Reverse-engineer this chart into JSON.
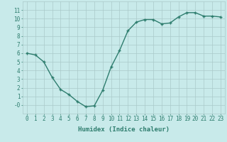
{
  "x": [
    0,
    1,
    2,
    3,
    4,
    5,
    6,
    7,
    8,
    9,
    10,
    11,
    12,
    13,
    14,
    15,
    16,
    17,
    18,
    19,
    20,
    21,
    22,
    23
  ],
  "y": [
    6.0,
    5.8,
    5.0,
    3.2,
    1.8,
    1.2,
    0.4,
    -0.2,
    -0.1,
    1.7,
    4.4,
    6.3,
    8.6,
    9.6,
    9.9,
    9.9,
    9.4,
    9.5,
    10.2,
    10.7,
    10.7,
    10.3,
    10.3,
    10.2
  ],
  "line_color": "#2e7d6e",
  "marker": "+",
  "marker_size": 3.0,
  "bg_color": "#c8eaea",
  "grid_color": "#aacaca",
  "xlabel": "Humidex (Indice chaleur)",
  "xlim": [
    -0.5,
    23.5
  ],
  "ylim": [
    -1,
    12
  ],
  "yticks": [
    0,
    1,
    2,
    3,
    4,
    5,
    6,
    7,
    8,
    9,
    10,
    11
  ],
  "ytick_labels": [
    "-0",
    "1",
    "2",
    "3",
    "4",
    "5",
    "6",
    "7",
    "8",
    "9",
    "10",
    "11"
  ],
  "xticks": [
    0,
    1,
    2,
    3,
    4,
    5,
    6,
    7,
    8,
    9,
    10,
    11,
    12,
    13,
    14,
    15,
    16,
    17,
    18,
    19,
    20,
    21,
    22,
    23
  ],
  "tick_color": "#2e7d6e",
  "font_color": "#2e7d6e",
  "xlabel_fontsize": 6.5,
  "tick_fontsize": 5.5,
  "linewidth": 1.0,
  "marker_color": "#2e7d6e"
}
